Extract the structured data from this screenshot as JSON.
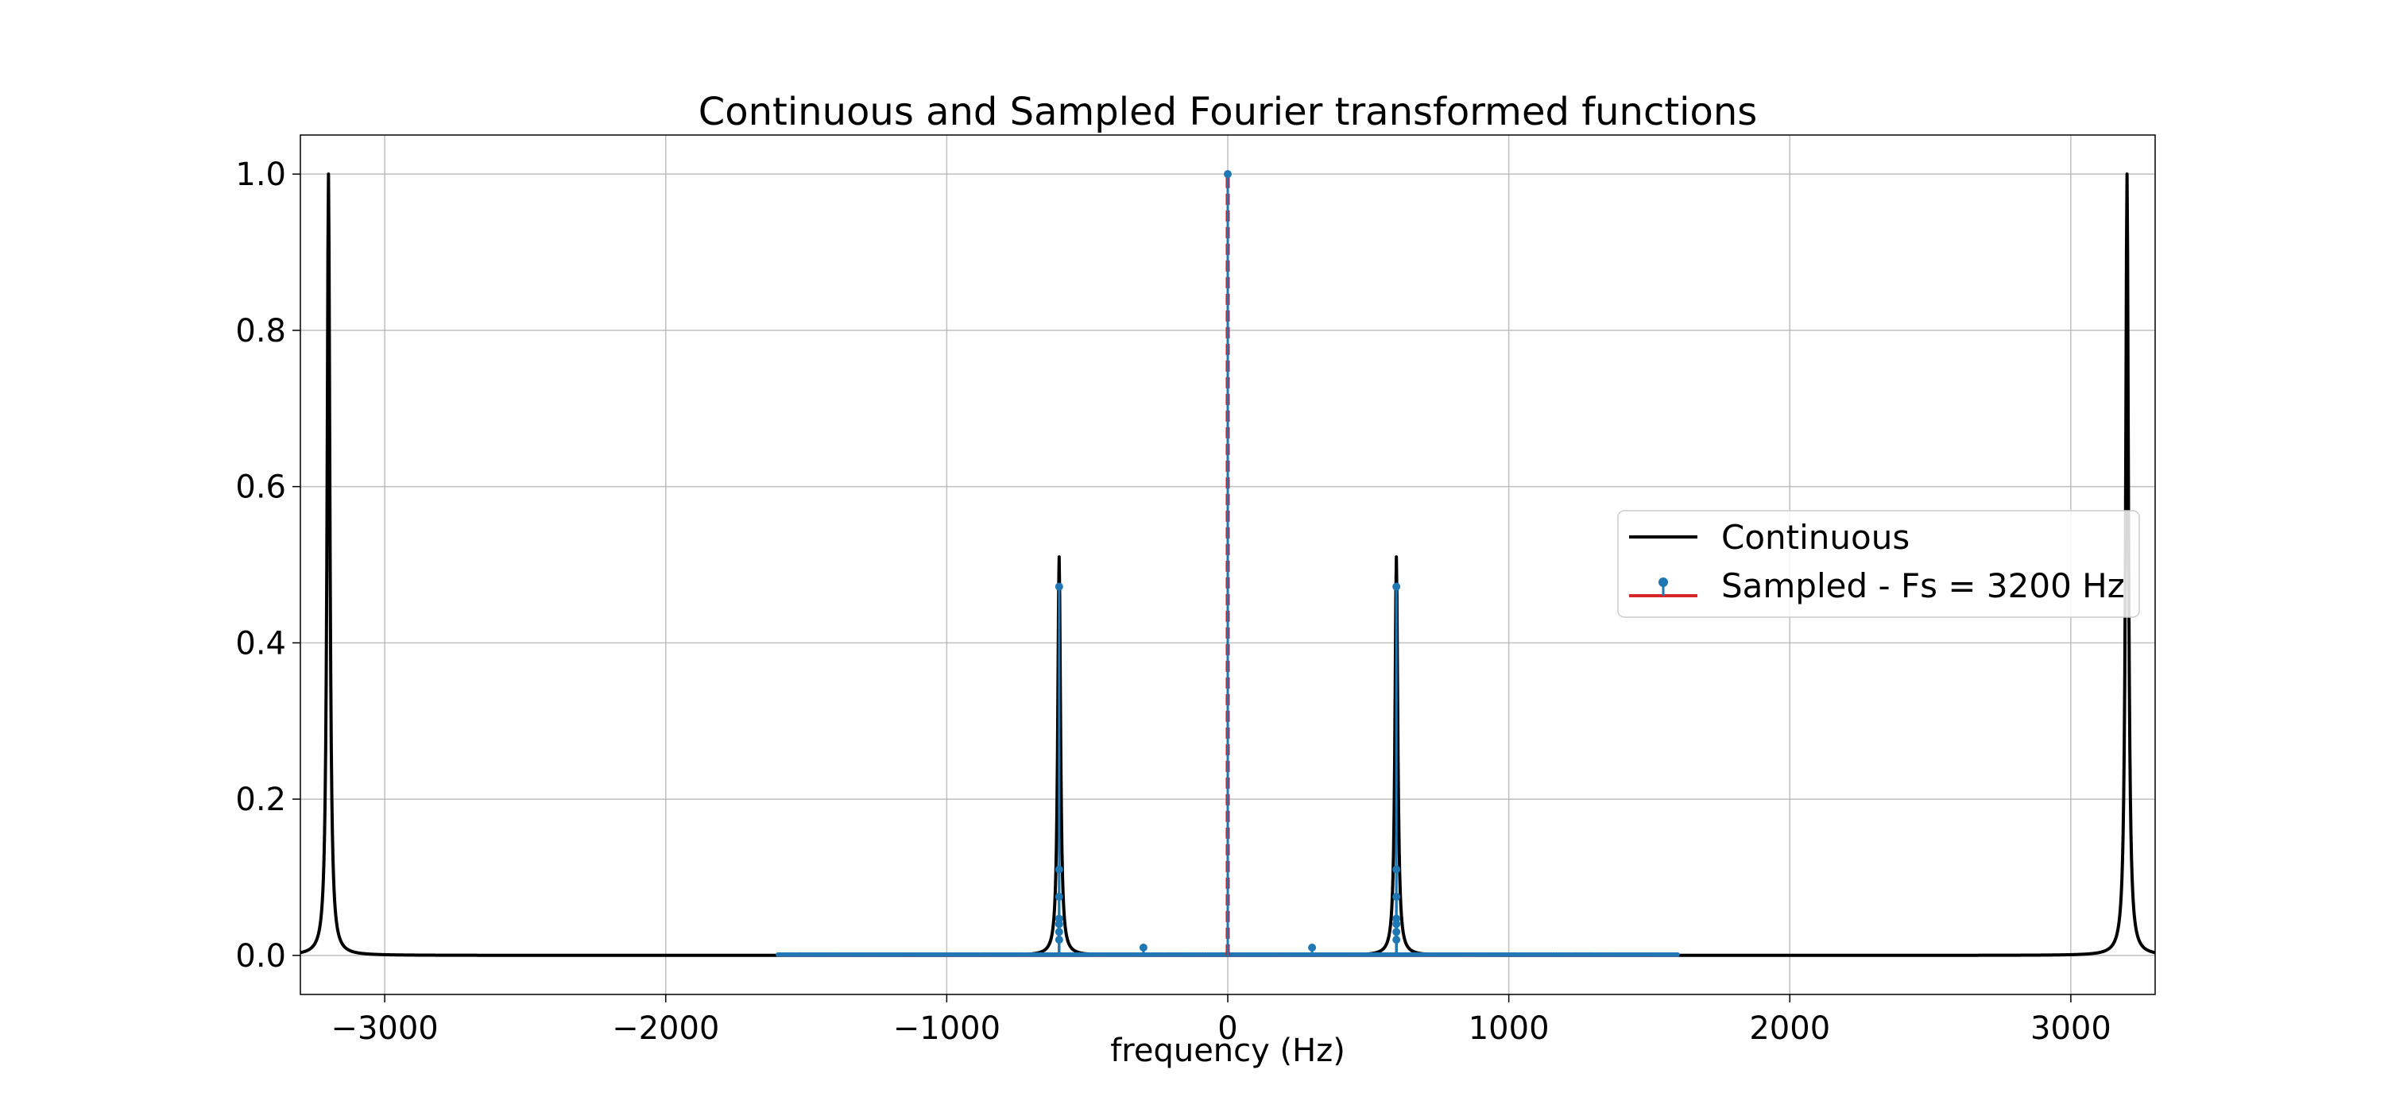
{
  "chart_data": {
    "type": "line",
    "title": "Continuous and Sampled Fourier transformed functions",
    "xlabel": "frequency (Hz)",
    "ylabel": "",
    "xlim": [
      -3300,
      3300
    ],
    "ylim": [
      -0.05,
      1.05
    ],
    "xticks": [
      -3000,
      -2000,
      -1000,
      0,
      1000,
      2000,
      3000
    ],
    "xtick_labels": [
      "−3000",
      "−2000",
      "−1000",
      "0",
      "1000",
      "2000",
      "3000"
    ],
    "yticks": [
      0.0,
      0.2,
      0.4,
      0.6,
      0.8,
      1.0
    ],
    "ytick_labels": [
      "0.0",
      "0.2",
      "0.4",
      "0.6",
      "0.8",
      "1.0"
    ],
    "grid": true,
    "legend_position": "center-right",
    "colors": {
      "continuous": "#000000",
      "stem_marker": "#1f77b4",
      "stem_baseline": "#d62728",
      "dc_line": "#ff0000"
    },
    "series": [
      {
        "name": "Continuous",
        "kind": "line",
        "peaks": [
          {
            "x": -3200,
            "y": 1.0
          },
          {
            "x": -600,
            "y": 0.51
          },
          {
            "x": 600,
            "y": 0.51
          },
          {
            "x": 3200,
            "y": 1.0
          }
        ]
      },
      {
        "name": "Sampled - Fs = 3200 Hz",
        "kind": "stem",
        "baseline_range": [
          -1600,
          1600
        ],
        "points": [
          {
            "x": 0,
            "y": 1.0
          },
          {
            "x": -600,
            "y": 0.472
          },
          {
            "x": -600,
            "y": 0.11
          },
          {
            "x": -600,
            "y": 0.075
          },
          {
            "x": -600,
            "y": 0.047
          },
          {
            "x": -600,
            "y": 0.04
          },
          {
            "x": -600,
            "y": 0.03
          },
          {
            "x": -600,
            "y": 0.02
          },
          {
            "x": 600,
            "y": 0.472
          },
          {
            "x": 600,
            "y": 0.11
          },
          {
            "x": 600,
            "y": 0.075
          },
          {
            "x": 600,
            "y": 0.047
          },
          {
            "x": 600,
            "y": 0.04
          },
          {
            "x": 600,
            "y": 0.03
          },
          {
            "x": 600,
            "y": 0.02
          },
          {
            "x": -300,
            "y": 0.01
          },
          {
            "x": 300,
            "y": 0.01
          }
        ]
      }
    ],
    "dc_marker": {
      "x": 0,
      "y_top": 1.0,
      "style": "dashed"
    }
  }
}
